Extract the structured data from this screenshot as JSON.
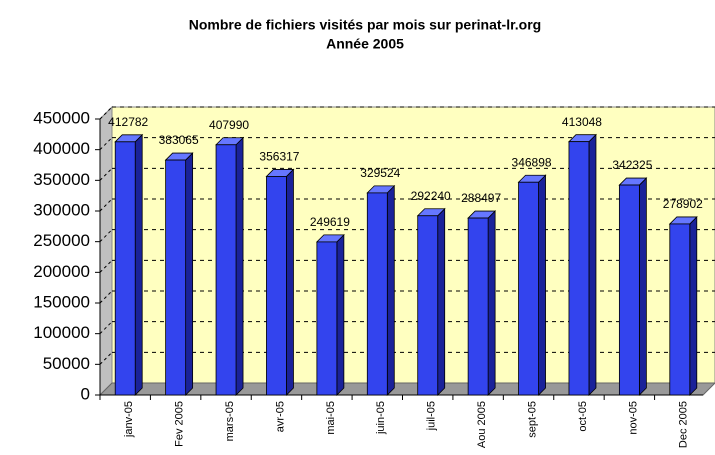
{
  "chart_data": {
    "type": "bar3d",
    "title": "Nombre de fichiers visités par mois sur perinat-lr.org",
    "subtitle": "Année 2005",
    "categories": [
      "janv-05",
      "Fev 2005",
      "mars-05",
      "avr-05",
      "mai-05",
      "juin-05",
      "juil-05",
      "Aou 2005",
      "sept-05",
      "oct-05",
      "nov-05",
      "Dec 2005"
    ],
    "values": [
      412782,
      383065,
      407990,
      356317,
      249619,
      329524,
      292240,
      288497,
      346898,
      413048,
      342325,
      278902
    ],
    "color": "#3344ee",
    "ylim": [
      0,
      450000
    ],
    "yticks": [
      0,
      50000,
      100000,
      150000,
      200000,
      250000,
      300000,
      350000,
      400000,
      450000
    ],
    "grid": true
  }
}
